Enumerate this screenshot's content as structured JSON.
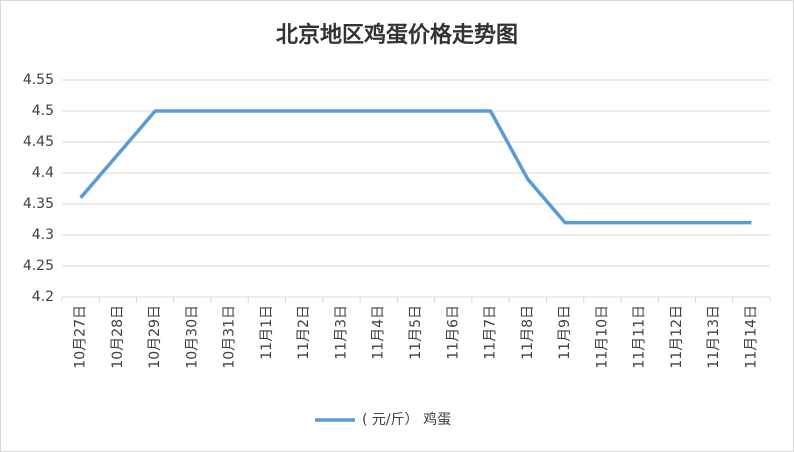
{
  "chart_data": {
    "type": "line",
    "title": "北京地区鸡蛋价格走势图",
    "categories": [
      "10月27日",
      "10月28日",
      "10月29日",
      "10月30日",
      "10月31日",
      "11月1日",
      "11月2日",
      "11月3日",
      "11月4日",
      "11月5日",
      "11月6日",
      "11月7日",
      "11月8日",
      "11月9日",
      "11月10日",
      "11月11日",
      "11月12日",
      "11月13日",
      "11月14日"
    ],
    "series": [
      {
        "name": "( 元/斤） 鸡蛋",
        "color": "#5b9bd5",
        "values": [
          4.36,
          4.43,
          4.5,
          4.5,
          4.5,
          4.5,
          4.5,
          4.5,
          4.5,
          4.5,
          4.5,
          4.5,
          4.39,
          4.32,
          4.32,
          4.32,
          4.32,
          4.32,
          4.32
        ]
      }
    ],
    "ylim": [
      4.2,
      4.55
    ],
    "yticks": [
      4.2,
      4.25,
      4.3,
      4.35,
      4.4,
      4.45,
      4.5,
      4.55
    ],
    "grid": true
  }
}
